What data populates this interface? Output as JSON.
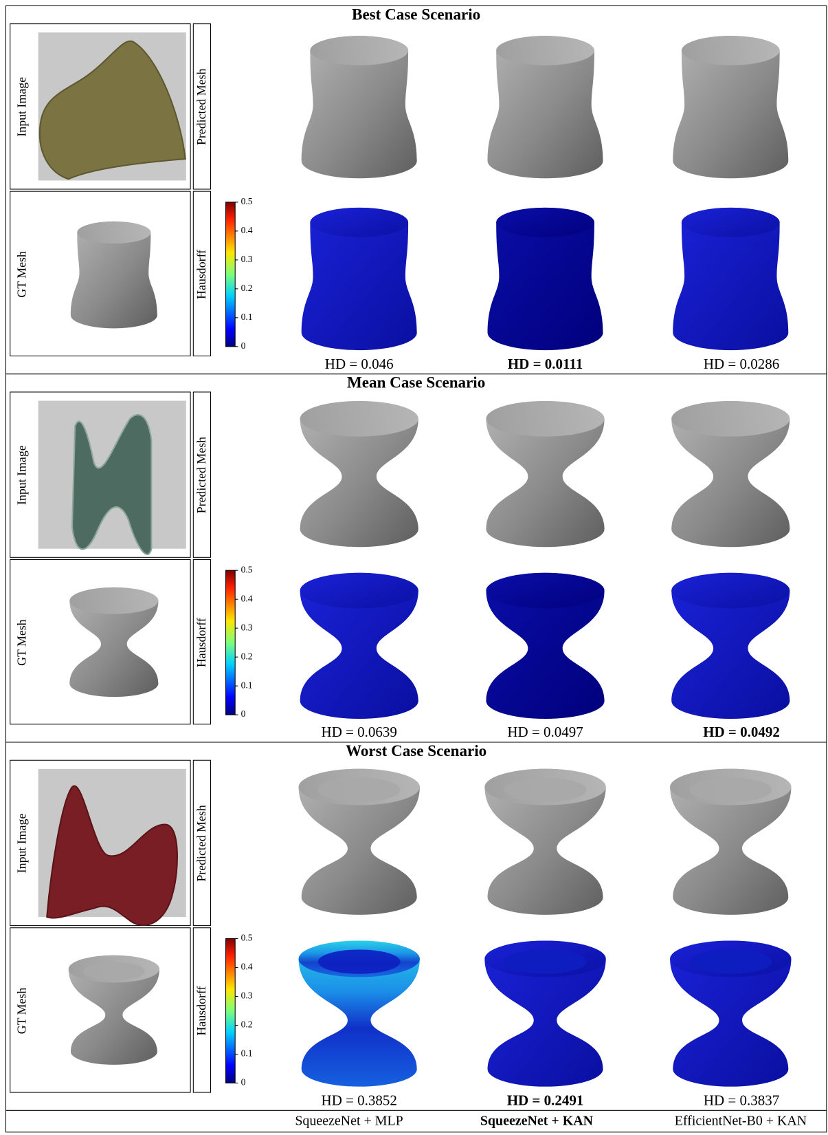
{
  "sections": [
    {
      "title": "Best Case Scenario",
      "hd": [
        "HD = 0.046",
        "HD = 0.0111",
        "HD = 0.0286"
      ],
      "best": 1
    },
    {
      "title": "Mean Case Scenario",
      "hd": [
        "HD = 0.0639",
        "HD = 0.0497",
        "HD = 0.0492"
      ],
      "best": 2
    },
    {
      "title": "Worst Case Scenario",
      "hd": [
        "HD = 0.3852",
        "HD = 0.2491",
        "HD = 0.3837"
      ],
      "best": 1
    }
  ],
  "row_labels": {
    "input": "Input Image",
    "predicted": "Predicted Mesh",
    "gt": "GT Mesh",
    "error": "Hausdorff"
  },
  "colorbar_ticks": [
    0,
    0.1,
    0.2,
    0.3,
    0.4,
    0.5
  ],
  "methods": [
    "SqueezeNet + MLP",
    "SqueezeNet + KAN",
    "EfficientNet-B0 + KAN"
  ],
  "best_method": 1
}
